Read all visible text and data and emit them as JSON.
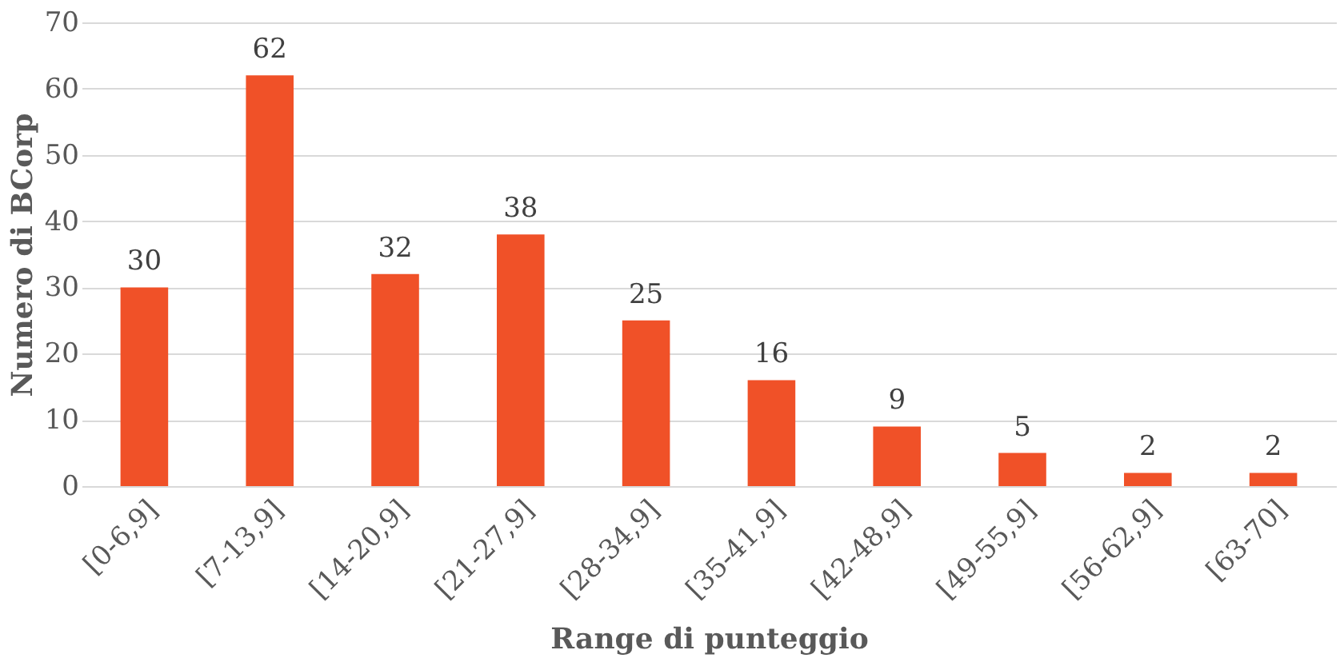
{
  "chart_data": {
    "type": "bar",
    "xlabel": "Range di punteggio",
    "ylabel": "Numero di BCorp",
    "categories": [
      "[0-6,9]",
      "[7-13,9]",
      "[14-20,9]",
      "[21-27,9]",
      "[28-34,9]",
      "[35-41,9]",
      "[42-48,9]",
      "[49-55,9]",
      "[56-62,9]",
      "[63-70]"
    ],
    "values": [
      30,
      62,
      32,
      38,
      25,
      16,
      9,
      5,
      2,
      2
    ],
    "color": "#f05128",
    "ylim": [
      0,
      70
    ],
    "yticks": [
      0,
      10,
      20,
      30,
      40,
      50,
      60,
      70
    ],
    "grid": "y",
    "data_labels": true
  }
}
